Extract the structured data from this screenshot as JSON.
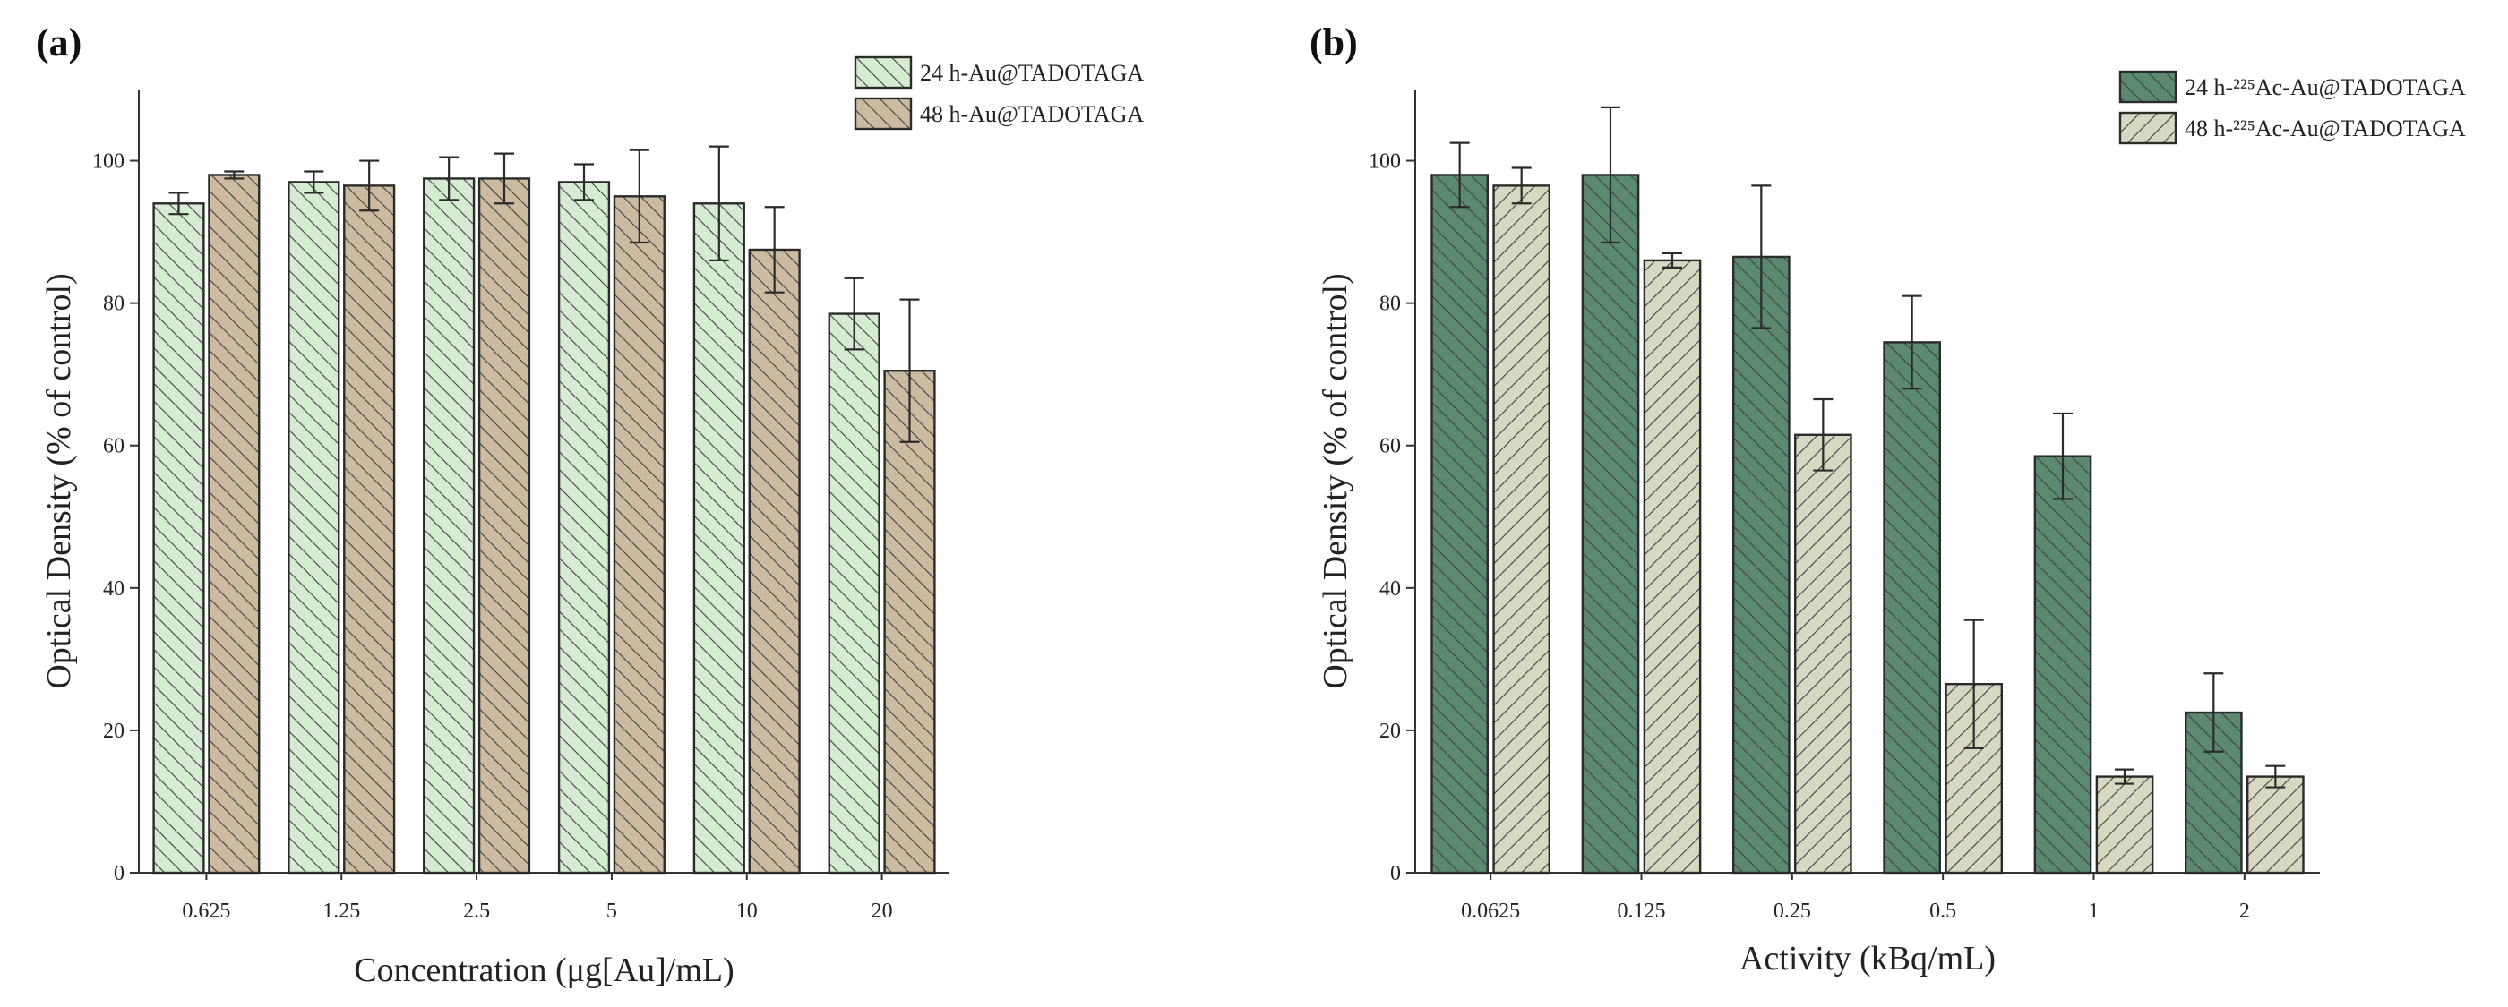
{
  "colors": {
    "a_24h": "#d6ecd2",
    "a_48h": "#cdbba1",
    "b_24h": "#5c8a70",
    "b_48h": "#d7d8c2",
    "hatch": "#3f3f3f"
  },
  "chart_data": [
    {
      "panel": "(a)",
      "type": "bar",
      "title": "",
      "xlabel": "Concentration (μg[Au]/mL)",
      "ylabel": "Optical Density (% of control)",
      "ylim": [
        0,
        110
      ],
      "yticks": [
        0,
        20,
        40,
        60,
        80,
        100
      ],
      "grid": false,
      "legend": "top-right",
      "categories": [
        "0.625",
        "1.25",
        "2.5",
        "5",
        "10",
        "20"
      ],
      "series": [
        {
          "name": "24 h-Au@TADOTAGA",
          "values": [
            94,
            97,
            97.5,
            97,
            94,
            78.5
          ],
          "errors": [
            1.5,
            1.5,
            3,
            2.5,
            8,
            5
          ]
        },
        {
          "name": "48 h-Au@TADOTAGA",
          "values": [
            98,
            96.5,
            97.5,
            95,
            87.5,
            70.5
          ],
          "errors": [
            0.5,
            3.5,
            3.5,
            6.5,
            6,
            10
          ]
        }
      ]
    },
    {
      "panel": "(b)",
      "type": "bar",
      "title": "",
      "xlabel": "Activity (kBq/mL)",
      "ylabel": "Optical Density (% of control)",
      "ylim": [
        0,
        110
      ],
      "yticks": [
        0,
        20,
        40,
        60,
        80,
        100
      ],
      "grid": false,
      "legend": "top-right",
      "categories": [
        "0.0625",
        "0.125",
        "0.25",
        "0.5",
        "1",
        "2"
      ],
      "series": [
        {
          "name": "24 h-²²⁵Ac-Au@TADOTAGA",
          "values": [
            98,
            98,
            86.5,
            74.5,
            58.5,
            22.5
          ],
          "errors": [
            4.5,
            9.5,
            10,
            6.5,
            6,
            5.5
          ]
        },
        {
          "name": "48 h-²²⁵Ac-Au@TADOTAGA",
          "values": [
            96.5,
            86,
            61.5,
            26.5,
            13.5,
            13.5
          ],
          "errors": [
            2.5,
            1,
            5,
            9,
            1,
            1.5
          ]
        }
      ]
    }
  ]
}
